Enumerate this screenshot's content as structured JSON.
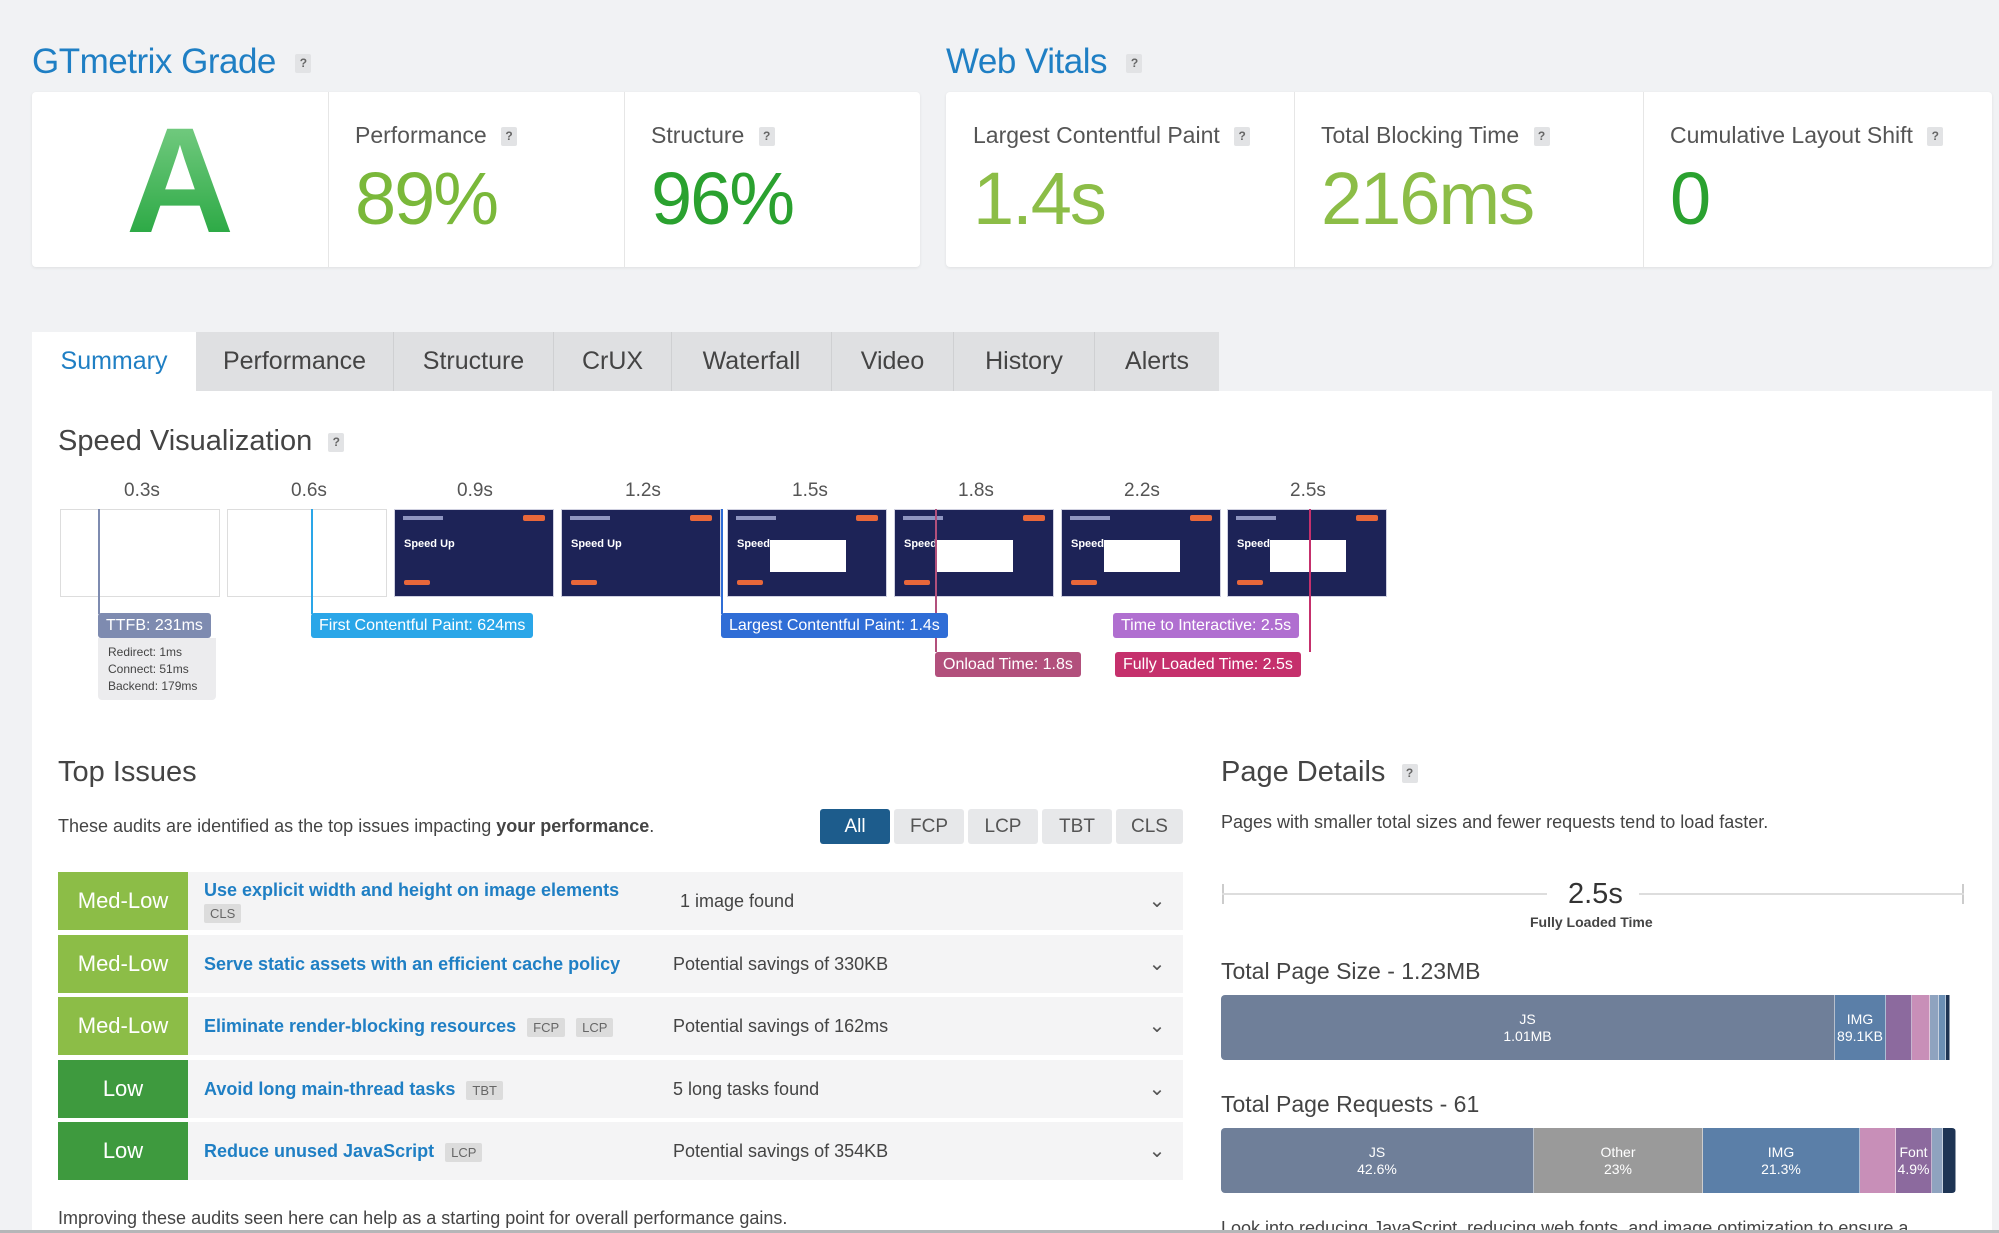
{
  "grade": {
    "heading": "GTmetrix Grade",
    "letter": "A",
    "performance_label": "Performance",
    "performance_value": "89%",
    "structure_label": "Structure",
    "structure_value": "96%"
  },
  "vitals": {
    "heading": "Web Vitals",
    "lcp_label": "Largest Contentful Paint",
    "lcp_value": "1.4s",
    "tbt_label": "Total Blocking Time",
    "tbt_value": "216ms",
    "cls_label": "Cumulative Layout Shift",
    "cls_value": "0"
  },
  "help_glyph": "?",
  "tabs": [
    "Summary",
    "Performance",
    "Structure",
    "CrUX",
    "Waterfall",
    "Video",
    "History",
    "Alerts"
  ],
  "speed": {
    "title": "Speed Visualization",
    "ticks": [
      "0.3s",
      "0.6s",
      "0.9s",
      "1.2s",
      "1.5s",
      "1.8s",
      "2.2s",
      "2.5s"
    ],
    "frame_text": [
      "Speed Up",
      "Speed Up",
      "Speed",
      "Speed",
      "Speed",
      "Speed"
    ],
    "ttfb": "TTFB: 231ms",
    "ttfb_redirect": "Redirect: 1ms",
    "ttfb_connect": "Connect: 51ms",
    "ttfb_backend": "Backend: 179ms",
    "fcp": "First Contentful Paint: 624ms",
    "lcp": "Largest Contentful Paint: 1.4s",
    "tti": "Time to Interactive: 2.5s",
    "onload": "Onload Time: 1.8s",
    "fully": "Fully Loaded Time: 2.5s"
  },
  "colors": {
    "blue": "#1f7fc4",
    "medlow": "#8cbd47",
    "low": "#3e9a3e",
    "ttfb": "#7e8bb0",
    "fcp": "#2aa6e8",
    "lcp": "#2f6dd6",
    "tti": "#b06fd0",
    "onload": "#b2507c",
    "fully": "#c5306c"
  },
  "issues": {
    "title": "Top Issues",
    "intro": "These audits are identified as the top issues impacting ",
    "intro_bold": "your performance",
    "intro_end": ".",
    "filters": [
      "All",
      "FCP",
      "LCP",
      "TBT",
      "CLS"
    ],
    "rows": [
      {
        "level": "Med-Low",
        "title": "Use explicit width and height on image elements",
        "tags": [
          "CLS"
        ],
        "desc": "1 image found"
      },
      {
        "level": "Med-Low",
        "title": "Serve static assets with an efficient cache policy",
        "tags": [],
        "desc": "Potential savings of 330KB"
      },
      {
        "level": "Med-Low",
        "title": "Eliminate render-blocking resources",
        "tags": [
          "FCP",
          "LCP"
        ],
        "desc": "Potential savings of 162ms"
      },
      {
        "level": "Low",
        "title": "Avoid long main-thread tasks",
        "tags": [
          "TBT"
        ],
        "desc": "5 long tasks found"
      },
      {
        "level": "Low",
        "title": "Reduce unused JavaScript",
        "tags": [
          "LCP"
        ],
        "desc": "Potential savings of 354KB"
      }
    ],
    "footer": "Improving these audits seen here can help as a starting point for overall performance gains."
  },
  "details": {
    "title": "Page Details",
    "intro": "Pages with smaller total sizes and fewer requests tend to load faster.",
    "loaded_value": "2.5s",
    "loaded_label": "Fully Loaded Time",
    "size_title": "Total Page Size - 1.23MB",
    "size_bar": [
      {
        "label": "JS",
        "value": "1.01MB",
        "share": 0.835,
        "color": "#6f7f99"
      },
      {
        "label": "IMG",
        "value": "89.1KB",
        "share": 0.07,
        "color": "#5b7fa8"
      },
      {
        "label": "",
        "value": "",
        "share": 0.035,
        "color": "#8c6a9e"
      },
      {
        "label": "",
        "value": "",
        "share": 0.025,
        "color": "#c88fb8"
      },
      {
        "label": "",
        "value": "",
        "share": 0.012,
        "color": "#8fa3bf"
      },
      {
        "label": "",
        "value": "",
        "share": 0.01,
        "color": "#6b8fb5"
      },
      {
        "label": "",
        "value": "",
        "share": 0.005,
        "color": "#1e3454"
      }
    ],
    "requests_title": "Total Page Requests - 61",
    "requests_bar": [
      {
        "label": "JS",
        "value": "42.6%",
        "share": 0.426,
        "color": "#6f7f99"
      },
      {
        "label": "Other",
        "value": "23%",
        "share": 0.23,
        "color": "#9a9a9a"
      },
      {
        "label": "IMG",
        "value": "21.3%",
        "share": 0.213,
        "color": "#5b7fa8"
      },
      {
        "label": "",
        "value": "",
        "share": 0.049,
        "color": "#c88fb8"
      },
      {
        "label": "Font",
        "value": "4.9%",
        "share": 0.049,
        "color": "#8c6a9e"
      },
      {
        "label": "",
        "value": "",
        "share": 0.015,
        "color": "#8fa3bf"
      },
      {
        "label": "",
        "value": "",
        "share": 0.018,
        "color": "#1e3454"
      }
    ],
    "footer": "Look into reducing JavaScript, reducing web fonts, and image optimization to ensure a"
  }
}
